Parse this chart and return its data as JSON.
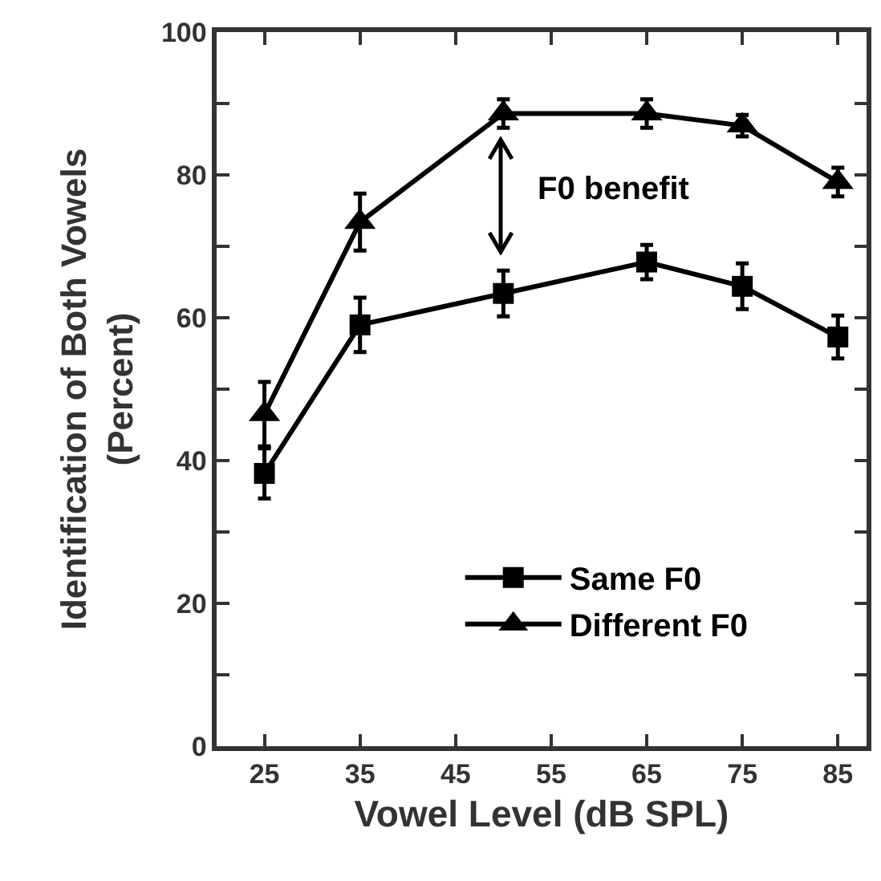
{
  "chart_data": {
    "type": "line",
    "xlabel": "Vowel Level (dB SPL)",
    "ylabel": "Identification of Both Vowels\n(Percent)",
    "x": [
      25,
      35,
      50,
      65,
      75,
      85
    ],
    "series": [
      {
        "name": "Same F0",
        "color": "#000000",
        "marker": "square",
        "values": [
          38.2,
          59.0,
          63.4,
          67.8,
          64.4,
          57.3
        ],
        "errors": [
          3.5,
          3.8,
          3.2,
          2.4,
          3.2,
          3
        ]
      },
      {
        "name": "Different F0",
        "color": "#000000",
        "marker": "triangle",
        "values": [
          46.5,
          73.4,
          88.6,
          88.6,
          86.9,
          79.0
        ],
        "errors": [
          4.5,
          4,
          2,
          2,
          1.5,
          2
        ]
      }
    ],
    "xlim": [
      20,
      88
    ],
    "xticks": [
      25,
      35,
      45,
      55,
      65,
      75,
      85
    ],
    "ylim": [
      0,
      100
    ],
    "yticks": [
      0,
      {
        "value": 10,
        "label": null
      },
      20,
      {
        "value": 30,
        "label": null
      },
      40,
      {
        "value": 50,
        "label": null
      },
      60,
      {
        "value": 70,
        "label": null
      },
      80,
      {
        "value": 90,
        "label": null
      },
      100
    ],
    "annotations": [
      "F0 benefit"
    ],
    "grid": false,
    "legend": "bottom right",
    "line_style": "solid"
  }
}
